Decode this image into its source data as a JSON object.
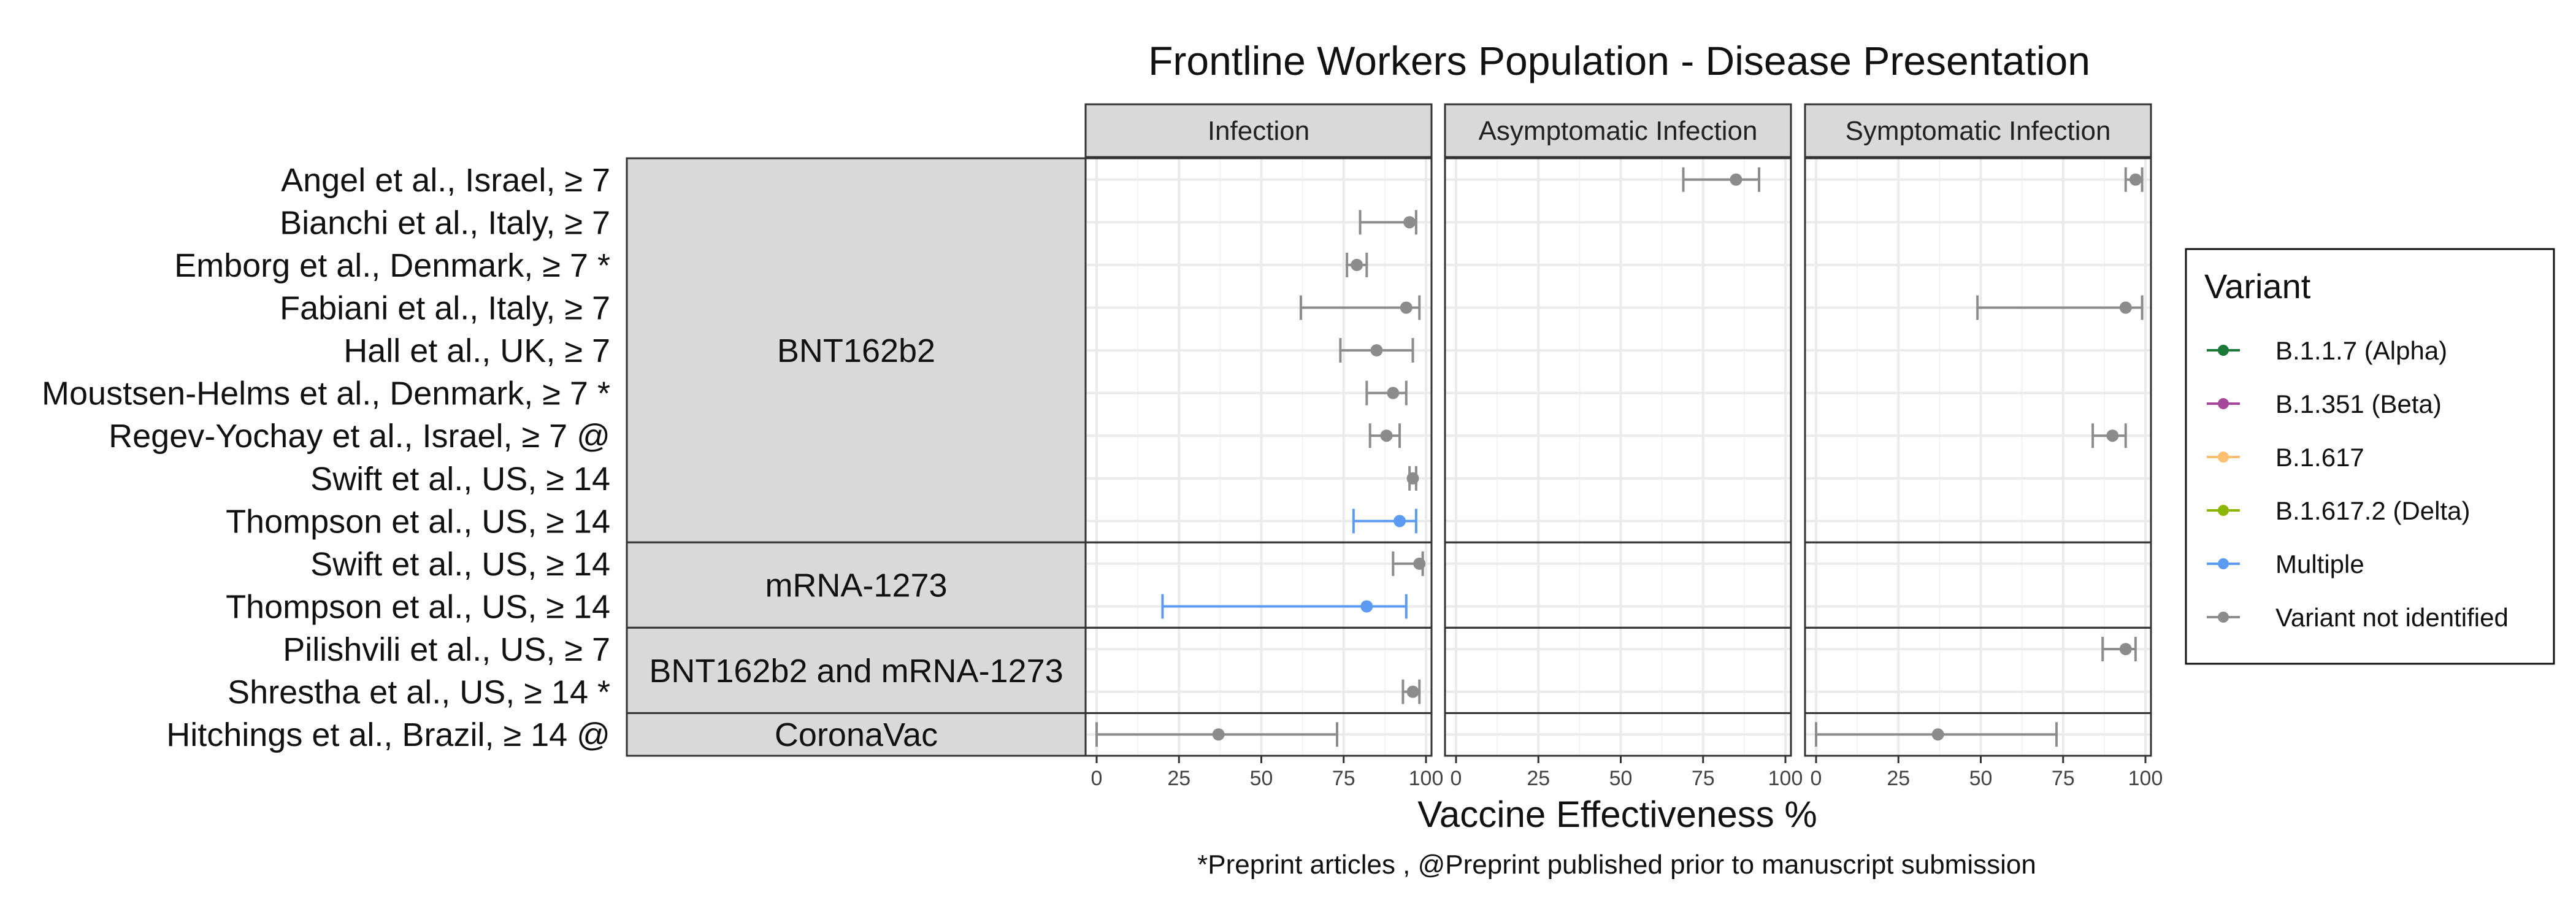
{
  "chart_data": {
    "type": "forest",
    "title": "Frontline Workers Population - Disease Presentation",
    "xlabel": "Vaccine Effectiveness %",
    "footnote": "*Preprint articles , @Preprint published prior to manuscript submission",
    "xlim": [
      0,
      100
    ],
    "x_ticks": [
      0,
      25,
      50,
      75,
      100
    ],
    "x_tick_labels": [
      "0",
      "25",
      "50",
      "75",
      "100"
    ],
    "panels": [
      "Infection",
      "Asymptomatic Infection",
      "Symptomatic Infection"
    ],
    "groups": [
      {
        "label": "BNT162b2",
        "rows": [
          "Angel et al., Israel, ≥ 7",
          "Bianchi et al., Italy, ≥ 7",
          "Emborg et al., Denmark, ≥ 7 *",
          "Fabiani et al., Italy, ≥ 7",
          "Hall et al., UK, ≥ 7",
          "Moustsen-Helms et al., Denmark, ≥ 7 *",
          "Regev-Yochay et al., Israel, ≥ 7 @",
          "Swift et al., US, ≥ 14",
          "Thompson et al., US, ≥ 14"
        ]
      },
      {
        "label": "mRNA-1273",
        "rows": [
          "Swift et al., US, ≥ 14",
          "Thompson et al., US, ≥ 14"
        ]
      },
      {
        "label": "BNT162b2 and mRNA-1273",
        "rows": [
          "Pilishvili et al., US, ≥ 7",
          "Shrestha et al., US, ≥ 14 *"
        ]
      },
      {
        "label": "CoronaVac",
        "rows": [
          "Hitchings et al., Brazil, ≥ 14 @"
        ]
      }
    ],
    "legend": {
      "title": "Variant",
      "position": "right",
      "items": [
        {
          "label": "B.1.1.7 (Alpha)",
          "color": "#1b7837"
        },
        {
          "label": "B.1.351 (Beta)",
          "color": "#a7479a"
        },
        {
          "label": "B.1.617",
          "color": "#fdbf6f"
        },
        {
          "label": "B.1.617.2 (Delta)",
          "color": "#8db600"
        },
        {
          "label": "Multiple",
          "color": "#5b9cf2"
        },
        {
          "label": "Variant not identified",
          "color": "#8c8c8c"
        }
      ]
    },
    "estimates": [
      {
        "group": 0,
        "row": 0,
        "panel": 1,
        "value": 85,
        "lower": 69,
        "upper": 92,
        "variant": "Variant not identified"
      },
      {
        "group": 0,
        "row": 0,
        "panel": 2,
        "value": 97,
        "lower": 94,
        "upper": 99,
        "variant": "Variant not identified"
      },
      {
        "group": 0,
        "row": 1,
        "panel": 0,
        "value": 95,
        "lower": 80,
        "upper": 97,
        "variant": "Variant not identified"
      },
      {
        "group": 0,
        "row": 2,
        "panel": 0,
        "value": 79,
        "lower": 76,
        "upper": 82,
        "variant": "Variant not identified"
      },
      {
        "group": 0,
        "row": 3,
        "panel": 0,
        "value": 94,
        "lower": 62,
        "upper": 98,
        "variant": "Variant not identified"
      },
      {
        "group": 0,
        "row": 3,
        "panel": 2,
        "value": 94,
        "lower": 49,
        "upper": 99,
        "variant": "Variant not identified"
      },
      {
        "group": 0,
        "row": 4,
        "panel": 0,
        "value": 85,
        "lower": 74,
        "upper": 96,
        "variant": "Variant not identified"
      },
      {
        "group": 0,
        "row": 5,
        "panel": 0,
        "value": 90,
        "lower": 82,
        "upper": 94,
        "variant": "Variant not identified"
      },
      {
        "group": 0,
        "row": 6,
        "panel": 0,
        "value": 88,
        "lower": 83,
        "upper": 92,
        "variant": "Variant not identified"
      },
      {
        "group": 0,
        "row": 6,
        "panel": 2,
        "value": 90,
        "lower": 84,
        "upper": 94,
        "variant": "Variant not identified"
      },
      {
        "group": 0,
        "row": 7,
        "panel": 0,
        "value": 96,
        "lower": 95,
        "upper": 97,
        "variant": "Variant not identified"
      },
      {
        "group": 0,
        "row": 8,
        "panel": 0,
        "value": 92,
        "lower": 78,
        "upper": 97,
        "variant": "Multiple"
      },
      {
        "group": 1,
        "row": 0,
        "panel": 0,
        "value": 98,
        "lower": 90,
        "upper": 99,
        "variant": "Variant not identified"
      },
      {
        "group": 1,
        "row": 1,
        "panel": 0,
        "value": 82,
        "lower": 20,
        "upper": 94,
        "variant": "Multiple"
      },
      {
        "group": 2,
        "row": 0,
        "panel": 2,
        "value": 94,
        "lower": 87,
        "upper": 97,
        "variant": "Variant not identified"
      },
      {
        "group": 2,
        "row": 1,
        "panel": 0,
        "value": 96,
        "lower": 93,
        "upper": 98,
        "variant": "Variant not identified"
      },
      {
        "group": 3,
        "row": 0,
        "panel": 0,
        "value": 37,
        "lower": 0,
        "upper": 73,
        "variant": "Variant not identified"
      },
      {
        "group": 3,
        "row": 0,
        "panel": 2,
        "value": 37,
        "lower": 0,
        "upper": 73,
        "variant": "Variant not identified"
      }
    ]
  }
}
